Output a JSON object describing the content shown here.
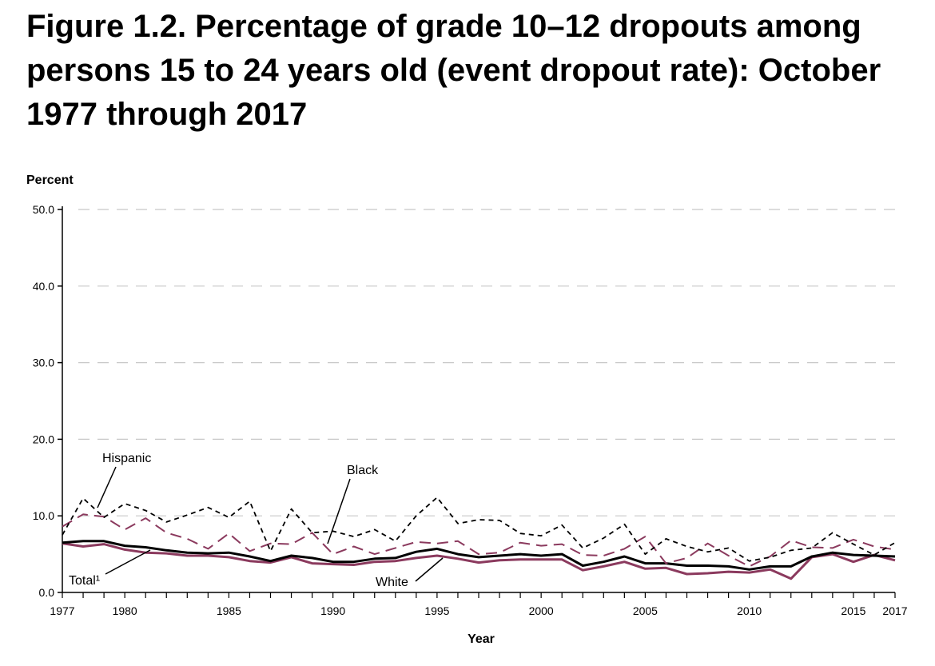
{
  "chart_data": {
    "type": "line",
    "title": "Figure 1.2. Percentage of grade 10–12 dropouts among persons 15 to 24 years old (event dropout rate): October 1977 through 2017",
    "xlabel": "Year",
    "ylabel": "Percent",
    "xlim": [
      1977,
      2017
    ],
    "ylim": [
      0,
      50
    ],
    "x_tick_labels": [
      "1977",
      "1980",
      "1985",
      "1990",
      "1995",
      "2000",
      "2005",
      "2010",
      "2015",
      "2017"
    ],
    "y_tick_labels": [
      "0.0",
      "10.0",
      "20.0",
      "30.0",
      "40.0",
      "50.0"
    ],
    "grid": "horizontal dashed",
    "legend": "inline labels",
    "x": [
      1977,
      1978,
      1979,
      1980,
      1981,
      1982,
      1983,
      1984,
      1985,
      1986,
      1987,
      1988,
      1989,
      1990,
      1991,
      1992,
      1993,
      1994,
      1995,
      1996,
      1997,
      1998,
      1999,
      2000,
      2001,
      2002,
      2003,
      2004,
      2005,
      2006,
      2007,
      2008,
      2009,
      2010,
      2011,
      2012,
      2013,
      2014,
      2015,
      2016,
      2017
    ],
    "series": [
      {
        "name": "Hispanic",
        "color": "#000000",
        "style": "short-dash",
        "values": [
          7.5,
          12.3,
          9.8,
          11.6,
          10.7,
          9.2,
          10.1,
          11.1,
          9.8,
          11.9,
          5.4,
          10.9,
          7.8,
          8.0,
          7.3,
          8.2,
          6.7,
          10.0,
          12.4,
          9.0,
          9.5,
          9.4,
          7.7,
          7.4,
          8.8,
          5.8,
          7.1,
          8.9,
          5.0,
          7.0,
          6.0,
          5.3,
          5.8,
          4.1,
          4.6,
          5.5,
          5.8,
          7.8,
          6.3,
          4.9,
          6.5
        ]
      },
      {
        "name": "Black",
        "color": "#8b3a5e",
        "style": "long-dash",
        "values": [
          8.6,
          10.2,
          9.9,
          8.2,
          9.7,
          7.8,
          7.0,
          5.7,
          7.7,
          5.4,
          6.4,
          6.3,
          7.8,
          5.0,
          6.0,
          5.0,
          5.8,
          6.6,
          6.4,
          6.7,
          5.0,
          5.2,
          6.5,
          6.1,
          6.3,
          4.9,
          4.8,
          5.7,
          7.3,
          3.8,
          4.5,
          6.4,
          4.8,
          3.4,
          4.7,
          6.8,
          5.9,
          5.8,
          6.9,
          6.0,
          5.6
        ]
      },
      {
        "name": "Total¹",
        "color": "#000000",
        "style": "solid",
        "values": [
          6.5,
          6.7,
          6.7,
          6.1,
          5.9,
          5.5,
          5.2,
          5.1,
          5.2,
          4.7,
          4.1,
          4.8,
          4.5,
          4.0,
          4.0,
          4.4,
          4.5,
          5.3,
          5.7,
          5.0,
          4.6,
          4.8,
          5.0,
          4.8,
          5.0,
          3.5,
          4.0,
          4.7,
          3.8,
          3.8,
          3.5,
          3.5,
          3.4,
          3.0,
          3.4,
          3.4,
          4.7,
          5.2,
          4.9,
          4.8,
          4.7
        ]
      },
      {
        "name": "White",
        "color": "#8b3a5e",
        "style": "solid",
        "values": [
          6.4,
          6.0,
          6.3,
          5.6,
          5.2,
          5.1,
          4.8,
          4.8,
          4.6,
          4.1,
          3.9,
          4.6,
          3.8,
          3.7,
          3.6,
          4.0,
          4.1,
          4.5,
          4.8,
          4.4,
          3.9,
          4.2,
          4.3,
          4.3,
          4.3,
          2.9,
          3.4,
          4.0,
          3.1,
          3.2,
          2.4,
          2.5,
          2.7,
          2.6,
          3.0,
          1.8,
          4.6,
          5.0,
          4.0,
          4.9,
          4.2
        ]
      }
    ]
  }
}
